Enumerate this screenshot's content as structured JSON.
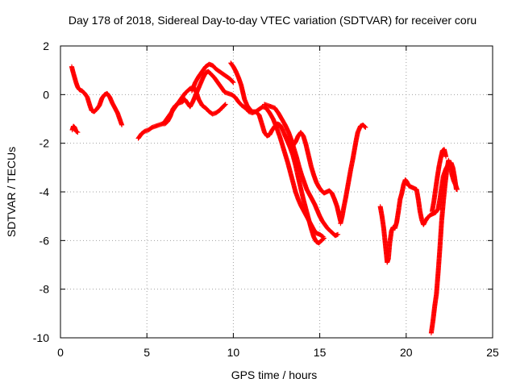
{
  "chart_data": {
    "type": "scatter",
    "title": "Day 178 of 2018, Sidereal Day-to-day VTEC variation (SDTVAR) for receiver coru",
    "xlabel": "GPS time / hours",
    "ylabel": "SDTVAR / TECUs",
    "xlim": [
      0,
      25
    ],
    "ylim": [
      -10,
      2
    ],
    "xticks": [
      0,
      5,
      10,
      15,
      20,
      25
    ],
    "yticks": [
      2,
      0,
      -2,
      -4,
      -6,
      -8,
      -10
    ],
    "xtick_labels": [
      "0",
      "5",
      "10",
      "15",
      "20",
      "25"
    ],
    "ytick_labels": [
      "2",
      "0",
      "-2",
      "-4",
      "-6",
      "-8",
      "-10"
    ],
    "grid": true,
    "marker": "+",
    "series_color": "#ff0000",
    "segments": [
      [
        [
          0.65,
          1.15
        ],
        [
          0.72,
          0.95
        ],
        [
          0.8,
          0.75
        ],
        [
          0.9,
          0.5
        ],
        [
          1.0,
          0.3
        ],
        [
          1.1,
          0.2
        ],
        [
          1.25,
          0.15
        ],
        [
          1.4,
          0.05
        ],
        [
          1.55,
          -0.1
        ],
        [
          1.7,
          -0.45
        ],
        [
          1.8,
          -0.65
        ],
        [
          1.95,
          -0.7
        ],
        [
          2.1,
          -0.6
        ],
        [
          2.25,
          -0.45
        ],
        [
          2.4,
          -0.15
        ],
        [
          2.55,
          0.0
        ],
        [
          2.7,
          0.05
        ],
        [
          2.85,
          -0.1
        ],
        [
          3.0,
          -0.35
        ],
        [
          3.15,
          -0.55
        ],
        [
          3.3,
          -0.75
        ],
        [
          3.45,
          -1.05
        ],
        [
          3.55,
          -1.25
        ]
      ],
      [
        [
          0.68,
          -1.45
        ],
        [
          0.75,
          -1.3
        ],
        [
          0.82,
          -1.35
        ],
        [
          0.9,
          -1.5
        ],
        [
          1.0,
          -1.55
        ]
      ],
      [
        [
          4.5,
          -1.8
        ],
        [
          4.7,
          -1.6
        ],
        [
          4.9,
          -1.5
        ],
        [
          5.1,
          -1.45
        ],
        [
          5.3,
          -1.35
        ],
        [
          5.5,
          -1.3
        ],
        [
          5.7,
          -1.25
        ],
        [
          5.9,
          -1.2
        ],
        [
          6.05,
          -1.2
        ],
        [
          6.2,
          -1.1
        ],
        [
          6.35,
          -0.9
        ],
        [
          6.5,
          -0.6
        ],
        [
          6.65,
          -0.45
        ],
        [
          6.85,
          -0.35
        ],
        [
          7.05,
          -0.3
        ],
        [
          7.2,
          -0.2
        ],
        [
          7.35,
          -0.35
        ],
        [
          7.5,
          -0.5
        ],
        [
          7.65,
          -0.3
        ],
        [
          7.8,
          -0.05
        ],
        [
          7.95,
          0.2
        ],
        [
          8.1,
          0.45
        ],
        [
          8.25,
          0.7
        ],
        [
          8.4,
          0.9
        ],
        [
          8.55,
          0.95
        ],
        [
          8.7,
          0.85
        ],
        [
          8.9,
          0.7
        ],
        [
          9.1,
          0.5
        ],
        [
          9.3,
          0.3
        ],
        [
          9.5,
          0.1
        ],
        [
          9.7,
          0.05
        ],
        [
          9.9,
          0.0
        ],
        [
          10.1,
          -0.1
        ],
        [
          10.3,
          -0.3
        ],
        [
          10.5,
          -0.45
        ],
        [
          10.7,
          -0.55
        ],
        [
          10.9,
          -0.7
        ],
        [
          11.1,
          -0.75
        ],
        [
          11.3,
          -0.7
        ],
        [
          11.5,
          -0.85
        ],
        [
          11.65,
          -1.2
        ],
        [
          11.8,
          -1.55
        ],
        [
          11.95,
          -1.7
        ],
        [
          12.1,
          -1.65
        ],
        [
          12.25,
          -1.45
        ],
        [
          12.4,
          -1.3
        ],
        [
          12.55,
          -1.2
        ],
        [
          12.7,
          -1.25
        ],
        [
          12.85,
          -1.45
        ],
        [
          13.0,
          -1.7
        ],
        [
          13.15,
          -1.95
        ],
        [
          13.3,
          -2.2
        ],
        [
          13.45,
          -2.5
        ],
        [
          13.6,
          -2.9
        ],
        [
          13.75,
          -3.4
        ],
        [
          13.9,
          -3.85
        ],
        [
          14.05,
          -4.3
        ],
        [
          14.2,
          -4.7
        ],
        [
          14.35,
          -5.1
        ],
        [
          14.5,
          -5.5
        ],
        [
          14.65,
          -5.85
        ],
        [
          14.8,
          -6.05
        ],
        [
          14.95,
          -6.1
        ],
        [
          15.1,
          -6.0
        ],
        [
          15.25,
          -5.9
        ]
      ],
      [
        [
          6.0,
          -1.15
        ],
        [
          6.3,
          -0.85
        ],
        [
          6.6,
          -0.55
        ],
        [
          6.9,
          -0.25
        ],
        [
          7.2,
          0.05
        ],
        [
          7.5,
          0.25
        ],
        [
          7.7,
          0.3
        ],
        [
          7.85,
          0.1
        ],
        [
          8.0,
          -0.2
        ],
        [
          8.2,
          -0.45
        ],
        [
          8.4,
          -0.55
        ],
        [
          8.6,
          -0.7
        ],
        [
          8.8,
          -0.8
        ],
        [
          9.0,
          -0.75
        ],
        [
          9.2,
          -0.65
        ],
        [
          9.4,
          -0.5
        ],
        [
          9.55,
          -0.4
        ]
      ],
      [
        [
          7.6,
          0.15
        ],
        [
          7.8,
          0.5
        ],
        [
          8.0,
          0.75
        ],
        [
          8.2,
          0.95
        ],
        [
          8.4,
          1.15
        ],
        [
          8.6,
          1.25
        ],
        [
          8.8,
          1.2
        ],
        [
          9.0,
          1.05
        ],
        [
          9.2,
          0.95
        ],
        [
          9.4,
          0.85
        ],
        [
          9.6,
          0.75
        ],
        [
          9.8,
          0.65
        ],
        [
          10.0,
          0.5
        ]
      ],
      [
        [
          9.85,
          1.3
        ],
        [
          10.0,
          1.15
        ],
        [
          10.15,
          0.95
        ],
        [
          10.3,
          0.7
        ],
        [
          10.45,
          0.4
        ],
        [
          10.55,
          0.1
        ],
        [
          10.65,
          -0.2
        ],
        [
          10.8,
          -0.45
        ],
        [
          10.95,
          -0.6
        ],
        [
          11.1,
          -0.7
        ],
        [
          11.3,
          -0.7
        ],
        [
          11.5,
          -0.6
        ],
        [
          11.7,
          -0.5
        ],
        [
          11.9,
          -0.55
        ],
        [
          12.1,
          -0.75
        ],
        [
          12.3,
          -1.0
        ],
        [
          12.5,
          -1.35
        ],
        [
          12.7,
          -1.75
        ],
        [
          12.85,
          -2.1
        ],
        [
          13.0,
          -2.45
        ],
        [
          13.15,
          -2.8
        ],
        [
          13.3,
          -3.2
        ],
        [
          13.45,
          -3.6
        ],
        [
          13.6,
          -4.0
        ],
        [
          13.75,
          -4.3
        ],
        [
          13.9,
          -4.55
        ],
        [
          14.05,
          -4.75
        ],
        [
          14.2,
          -4.95
        ],
        [
          14.35,
          -5.15
        ],
        [
          14.5,
          -5.35
        ],
        [
          14.65,
          -5.55
        ],
        [
          14.8,
          -5.7
        ],
        [
          15.0,
          -5.75
        ],
        [
          15.2,
          -5.85
        ]
      ],
      [
        [
          11.8,
          -0.4
        ],
        [
          12.0,
          -0.45
        ],
        [
          12.2,
          -0.5
        ],
        [
          12.4,
          -0.55
        ],
        [
          12.6,
          -0.75
        ],
        [
          12.8,
          -1.0
        ],
        [
          13.0,
          -1.25
        ],
        [
          13.2,
          -1.55
        ],
        [
          13.35,
          -1.85
        ],
        [
          13.5,
          -2.2
        ],
        [
          13.65,
          -2.55
        ],
        [
          13.8,
          -2.95
        ],
        [
          13.95,
          -3.3
        ],
        [
          14.1,
          -3.6
        ],
        [
          14.25,
          -3.9
        ],
        [
          14.4,
          -4.1
        ],
        [
          14.55,
          -4.3
        ],
        [
          14.7,
          -4.5
        ],
        [
          14.85,
          -4.75
        ],
        [
          15.0,
          -5.0
        ],
        [
          15.15,
          -5.2
        ],
        [
          15.3,
          -5.35
        ],
        [
          15.45,
          -5.5
        ],
        [
          15.6,
          -5.6
        ],
        [
          15.75,
          -5.7
        ],
        [
          15.9,
          -5.8
        ],
        [
          16.05,
          -5.75
        ]
      ],
      [
        [
          13.0,
          -1.7
        ],
        [
          13.15,
          -1.9
        ],
        [
          13.3,
          -2.05
        ],
        [
          13.45,
          -2.1
        ],
        [
          13.6,
          -1.95
        ],
        [
          13.75,
          -1.7
        ],
        [
          13.9,
          -1.55
        ],
        [
          14.05,
          -1.7
        ],
        [
          14.2,
          -2.05
        ],
        [
          14.35,
          -2.5
        ],
        [
          14.5,
          -2.95
        ],
        [
          14.65,
          -3.3
        ],
        [
          14.8,
          -3.6
        ],
        [
          14.95,
          -3.8
        ],
        [
          15.1,
          -3.95
        ],
        [
          15.25,
          -4.05
        ],
        [
          15.4,
          -4.0
        ],
        [
          15.55,
          -3.95
        ],
        [
          15.7,
          -4.05
        ],
        [
          15.85,
          -4.3
        ],
        [
          16.0,
          -4.6
        ],
        [
          16.1,
          -4.9
        ],
        [
          16.2,
          -5.2
        ]
      ],
      [
        [
          16.2,
          -5.3
        ],
        [
          16.3,
          -5.0
        ],
        [
          16.4,
          -4.6
        ],
        [
          16.5,
          -4.25
        ],
        [
          16.6,
          -3.85
        ],
        [
          16.7,
          -3.45
        ],
        [
          16.8,
          -3.05
        ],
        [
          16.9,
          -2.7
        ],
        [
          17.0,
          -2.3
        ],
        [
          17.1,
          -1.9
        ],
        [
          17.2,
          -1.55
        ],
        [
          17.35,
          -1.3
        ],
        [
          17.5,
          -1.25
        ],
        [
          17.65,
          -1.35
        ]
      ],
      [
        [
          18.5,
          -4.6
        ],
        [
          18.6,
          -5.0
        ],
        [
          18.7,
          -5.5
        ],
        [
          18.8,
          -6.2
        ],
        [
          18.9,
          -6.9
        ],
        [
          18.97,
          -6.75
        ],
        [
          19.05,
          -6.1
        ],
        [
          19.15,
          -5.6
        ],
        [
          19.25,
          -5.45
        ],
        [
          19.35,
          -5.5
        ],
        [
          19.45,
          -5.25
        ],
        [
          19.55,
          -4.8
        ],
        [
          19.65,
          -4.3
        ],
        [
          19.75,
          -4.05
        ],
        [
          19.85,
          -3.7
        ],
        [
          19.95,
          -3.5
        ],
        [
          20.05,
          -3.6
        ],
        [
          20.15,
          -3.75
        ],
        [
          20.3,
          -3.8
        ],
        [
          20.45,
          -3.85
        ],
        [
          20.6,
          -3.9
        ],
        [
          20.7,
          -4.3
        ],
        [
          20.8,
          -4.8
        ],
        [
          20.9,
          -5.15
        ],
        [
          21.0,
          -5.35
        ],
        [
          21.1,
          -5.2
        ],
        [
          21.25,
          -5.05
        ],
        [
          21.4,
          -4.95
        ],
        [
          21.55,
          -4.9
        ],
        [
          21.7,
          -4.85
        ],
        [
          21.85,
          -4.7
        ],
        [
          21.95,
          -4.3
        ],
        [
          22.05,
          -3.8
        ],
        [
          22.15,
          -3.35
        ],
        [
          22.3,
          -3.05
        ],
        [
          22.45,
          -2.85
        ],
        [
          22.6,
          -2.8
        ],
        [
          22.7,
          -3.0
        ],
        [
          22.8,
          -3.4
        ],
        [
          22.9,
          -3.9
        ]
      ],
      [
        [
          21.45,
          -9.8
        ],
        [
          21.55,
          -9.3
        ],
        [
          21.65,
          -8.7
        ],
        [
          21.75,
          -8.2
        ],
        [
          21.85,
          -7.3
        ],
        [
          21.95,
          -6.3
        ],
        [
          22.05,
          -5.2
        ],
        [
          22.15,
          -4.4
        ],
        [
          22.25,
          -3.7
        ],
        [
          22.35,
          -3.1
        ],
        [
          22.45,
          -2.7
        ],
        [
          22.55,
          -2.9
        ],
        [
          22.65,
          -3.3
        ],
        [
          22.75,
          -3.55
        ],
        [
          22.85,
          -3.7
        ],
        [
          22.95,
          -3.9
        ]
      ],
      [
        [
          21.5,
          -4.8
        ],
        [
          21.6,
          -4.4
        ],
        [
          21.7,
          -3.9
        ],
        [
          21.8,
          -3.4
        ],
        [
          21.9,
          -2.95
        ],
        [
          22.0,
          -2.6
        ],
        [
          22.1,
          -2.3
        ],
        [
          22.2,
          -2.25
        ],
        [
          22.3,
          -2.55
        ]
      ]
    ]
  }
}
